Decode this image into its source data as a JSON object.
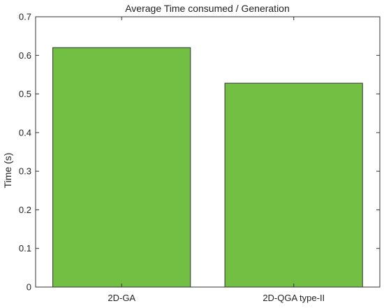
{
  "chart_data": {
    "type": "bar",
    "title": "Average Time consumed / Generation",
    "xlabel": "",
    "ylabel": "Time (s)",
    "categories": [
      "2D-GA",
      "2D-QGA type-II"
    ],
    "values": [
      0.62,
      0.528
    ],
    "ylim": [
      0,
      0.7
    ],
    "yticks": [
      "0",
      "0.1",
      "0.2",
      "0.3",
      "0.4",
      "0.5",
      "0.6",
      "0.7"
    ],
    "grid": false,
    "legend": "none",
    "bar_color": "#72bf44",
    "bar_edge_color": "#333333"
  }
}
